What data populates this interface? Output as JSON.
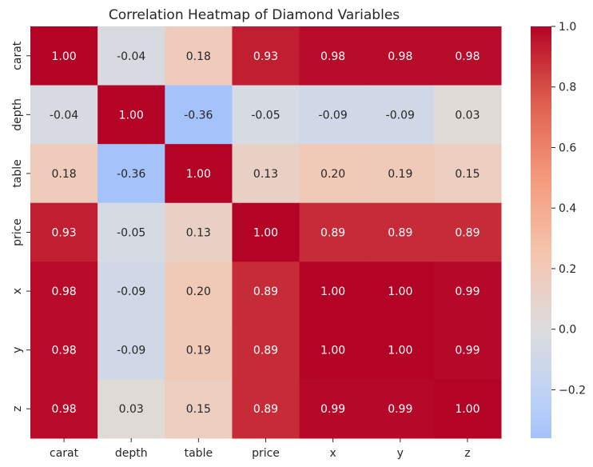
{
  "chart_data": {
    "type": "heatmap",
    "title": "Correlation Heatmap of Diamond Variables",
    "xlabel": "",
    "ylabel": "",
    "x_categories": [
      "carat",
      "depth",
      "table",
      "price",
      "x",
      "y",
      "z"
    ],
    "y_categories": [
      "carat",
      "depth",
      "table",
      "price",
      "x",
      "y",
      "z"
    ],
    "values": [
      [
        1.0,
        -0.04,
        0.18,
        0.93,
        0.98,
        0.98,
        0.98
      ],
      [
        -0.04,
        1.0,
        -0.36,
        -0.05,
        -0.09,
        -0.09,
        0.03
      ],
      [
        0.18,
        -0.36,
        1.0,
        0.13,
        0.2,
        0.19,
        0.15
      ],
      [
        0.93,
        -0.05,
        0.13,
        1.0,
        0.89,
        0.89,
        0.89
      ],
      [
        0.98,
        -0.09,
        0.2,
        0.89,
        1.0,
        1.0,
        0.99
      ],
      [
        0.98,
        -0.09,
        0.19,
        0.89,
        1.0,
        1.0,
        0.99
      ],
      [
        0.98,
        0.03,
        0.15,
        0.89,
        0.99,
        0.99,
        1.0
      ]
    ],
    "annotation_format": "0.00",
    "colormap": "coolwarm",
    "vmin": -0.36,
    "vmax": 1.0,
    "colorbar_ticks": [
      "1.0",
      "0.8",
      "0.6",
      "0.4",
      "0.2",
      "0.0",
      "−0.2"
    ],
    "colorbar_tick_values": [
      1.0,
      0.8,
      0.6,
      0.4,
      0.2,
      0.0,
      -0.2
    ],
    "grid": false,
    "legend": "colorbar-right"
  }
}
